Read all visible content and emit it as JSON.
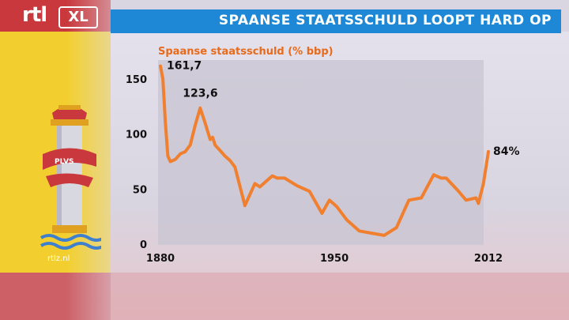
{
  "header": {
    "logo_rtl": "rtl",
    "logo_xl": "XL",
    "title": "SPAANSE STAATSSCHULD LOOPT HARD OP"
  },
  "emblem": {
    "motto": "PLVS",
    "source": "rtlz.nl"
  },
  "colors": {
    "title_bar": "#1e88d6",
    "line": "#f08030",
    "subtitle": "#e86a1a",
    "flag_red": "#c8383c",
    "flag_yellow": "#f2cf2e"
  },
  "chart_data": {
    "type": "line",
    "title": "SPAANSE STAATSSCHULD LOOPT HARD OP",
    "subtitle": "Spaanse staatsschuld (% bbp)",
    "xlabel": "",
    "ylabel": "",
    "xlim": [
      1880,
      2012
    ],
    "ylim": [
      0,
      160
    ],
    "yticks": [
      0,
      50,
      100,
      150
    ],
    "ytick_labels": [
      "0",
      "50",
      "100",
      "150"
    ],
    "xticks": [
      1880,
      1950,
      2012
    ],
    "xtick_labels": [
      "1880",
      "1950",
      "2012"
    ],
    "grid": false,
    "series": [
      {
        "x": [
          1880,
          1881,
          1882,
          1883,
          1884,
          1886,
          1888,
          1890,
          1892,
          1894,
          1896,
          1898,
          1900,
          1901,
          1902,
          1904,
          1906,
          1908,
          1910,
          1914,
          1918,
          1920,
          1925,
          1927,
          1930,
          1935,
          1940,
          1945,
          1948,
          1949,
          1950,
          1951,
          1955,
          1960,
          1965,
          1970,
          1975,
          1978,
          1980,
          1985,
          1990,
          1993,
          1995,
          2000,
          2003,
          2007,
          2008,
          2010,
          2012
        ],
        "values": [
          161.7,
          150,
          110,
          80,
          75,
          77,
          82,
          84,
          90,
          108,
          123.6,
          110,
          95,
          97,
          90,
          85,
          80,
          76,
          70,
          35,
          55,
          52,
          62,
          60,
          60,
          53,
          48,
          28,
          40,
          38,
          36,
          34,
          22,
          12,
          10,
          8,
          15,
          30,
          40,
          42,
          63,
          60,
          60,
          48,
          40,
          42,
          37,
          55,
          84
        ]
      }
    ],
    "annotations": [
      {
        "x": 1880,
        "y": 161.7,
        "text": "161,7"
      },
      {
        "x": 1896,
        "y": 123.6,
        "text": "123,6"
      },
      {
        "x": 2012,
        "y": 84,
        "text": "84%"
      }
    ]
  }
}
